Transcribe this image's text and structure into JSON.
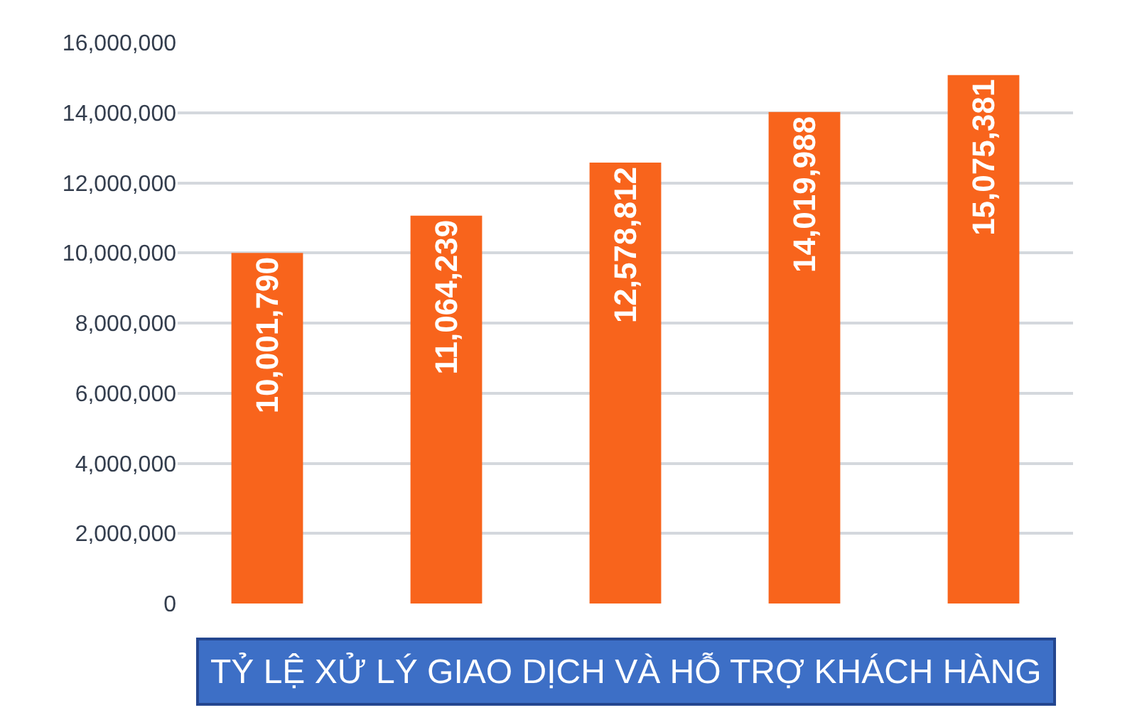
{
  "chart_data": {
    "type": "bar",
    "title": "TỶ LỆ XỬ LÝ GIAO DỊCH VÀ HỖ TRỢ KHÁCH HÀNG",
    "categories": [
      null,
      null,
      null,
      null,
      null
    ],
    "values": [
      10001790,
      11064239,
      12578812,
      14019988,
      15075381
    ],
    "value_labels": [
      "10,001,790",
      "11,064,239",
      "12,578,812",
      "14,019,988",
      "15,075,381"
    ],
    "color": "#f8641c",
    "ylim": [
      0,
      16000000
    ],
    "yticks": [
      {
        "value": 0,
        "label": "0"
      },
      {
        "value": 2000000,
        "label": "2,000,000"
      },
      {
        "value": 4000000,
        "label": "4,000,000"
      },
      {
        "value": 6000000,
        "label": "6,000,000"
      },
      {
        "value": 8000000,
        "label": "8,000,000"
      },
      {
        "value": 10000000,
        "label": "10,000,000"
      },
      {
        "value": 12000000,
        "label": "12,000,000"
      },
      {
        "value": 14000000,
        "label": "14,000,000"
      },
      {
        "value": 16000000,
        "label": "16,000,000"
      }
    ],
    "grid": "y",
    "tick_labels": "y"
  }
}
